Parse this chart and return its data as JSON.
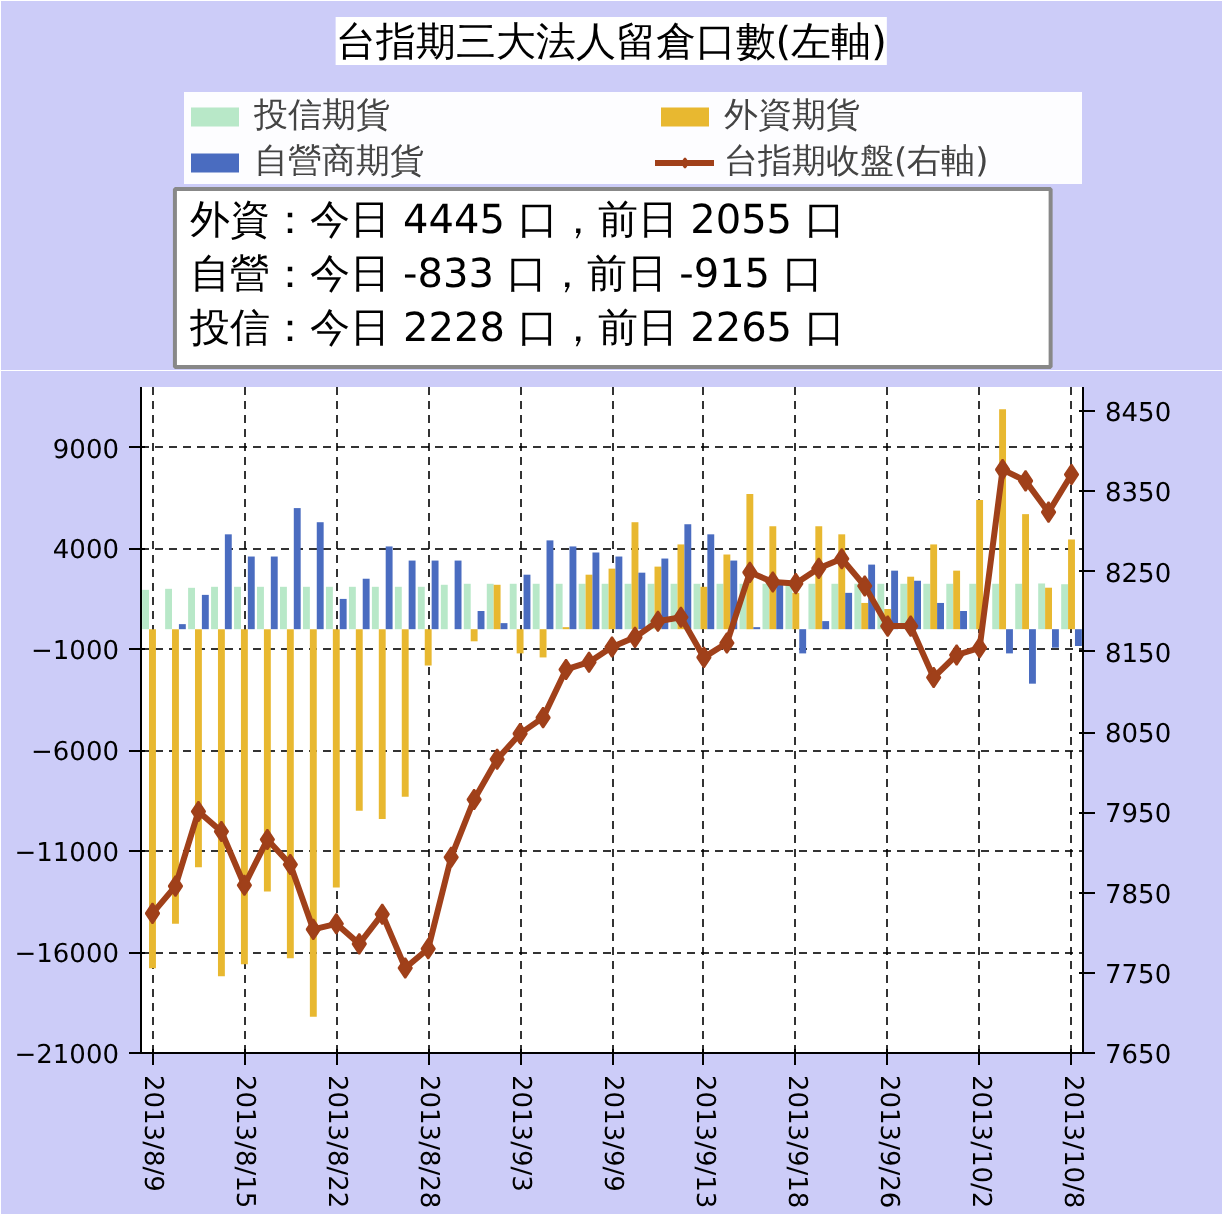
{
  "chart_data": {
    "type": "bar",
    "title": "台指期三大法人留倉口數(左軸)",
    "categories": [
      "2013/8/9",
      null,
      null,
      null,
      "2013/8/15",
      null,
      null,
      null,
      "2013/8/22",
      null,
      null,
      null,
      "2013/8/28",
      null,
      null,
      null,
      "2013/9/3",
      null,
      null,
      null,
      "2013/9/9",
      null,
      null,
      null,
      "2013/9/13",
      null,
      null,
      null,
      "2013/9/18",
      null,
      null,
      null,
      "2013/9/26",
      null,
      null,
      null,
      "2013/10/2",
      null,
      null,
      null,
      "2013/10/8"
    ],
    "series": [
      {
        "name": "投信期貨",
        "color": "#b8e8c8",
        "values": [
          1950,
          2000,
          2050,
          2100,
          2100,
          2100,
          2100,
          2100,
          2100,
          2100,
          2100,
          2100,
          2100,
          2200,
          2250,
          2250,
          2250,
          2250,
          2250,
          2250,
          2250,
          2250,
          2250,
          2250,
          2250,
          2250,
          2250,
          2250,
          2250,
          2250,
          2250,
          2250,
          2250,
          2250,
          2250,
          2250,
          2250,
          2250,
          2250,
          2265,
          2228
        ]
      },
      {
        "name": "外資期貨",
        "color": "#e8b830",
        "values": [
          -16800,
          -14600,
          -11800,
          -17200,
          -16600,
          -13000,
          -16300,
          -19200,
          -12800,
          -9000,
          -9400,
          -8300,
          -1800,
          null,
          -600,
          2200,
          -1200,
          -1400,
          100,
          2700,
          3000,
          5300,
          3100,
          4200,
          2100,
          3700,
          6700,
          5100,
          1800,
          5100,
          4700,
          1300,
          1000,
          2600,
          4200,
          2900,
          6400,
          10900,
          5700,
          2055,
          4445
        ]
      },
      {
        "name": "自營商期貨",
        "color": "#4a6cc0",
        "values": [
          0,
          250,
          1700,
          4700,
          3600,
          3600,
          6000,
          5300,
          1500,
          2500,
          4100,
          3400,
          3400,
          3400,
          900,
          300,
          2700,
          4400,
          4100,
          3800,
          3600,
          2800,
          3500,
          5200,
          4700,
          3400,
          100,
          2200,
          -1200,
          400,
          1800,
          3200,
          2900,
          2400,
          1300,
          900,
          0,
          -1200,
          -2700,
          -915,
          -833
        ]
      },
      {
        "name": "台指期收盤(右軸)",
        "type": "line",
        "axis": "y2",
        "color": "#a0401a",
        "marker": "diamond",
        "values": [
          7824,
          7858,
          7951,
          7926,
          7859,
          7916,
          7885,
          7804,
          7811,
          7786,
          7823,
          7756,
          7780,
          7894,
          7966,
          8016,
          8048,
          8068,
          8128,
          8137,
          8156,
          8168,
          8188,
          8193,
          8143,
          8161,
          8249,
          8237,
          8235,
          8254,
          8266,
          8232,
          8182,
          8182,
          8118,
          8146,
          8155,
          8377,
          8363,
          8324,
          8371
        ]
      }
    ],
    "ylim": [
      -21000,
      12000
    ],
    "yticks": [
      -21000,
      -16000,
      -11000,
      -6000,
      -1000,
      4000,
      9000
    ],
    "y2lim": [
      7650,
      8480
    ],
    "y2ticks": [
      7650,
      7750,
      7850,
      7950,
      8050,
      8150,
      8250,
      8350,
      8450
    ],
    "grid": true,
    "legend": "top",
    "annotations": [
      "外資：今日 4445 口，前日 2055 口",
      "自營：今日 -833 口，前日 -915 口",
      "投信：今日 2228 口，前日 2265 口"
    ]
  }
}
